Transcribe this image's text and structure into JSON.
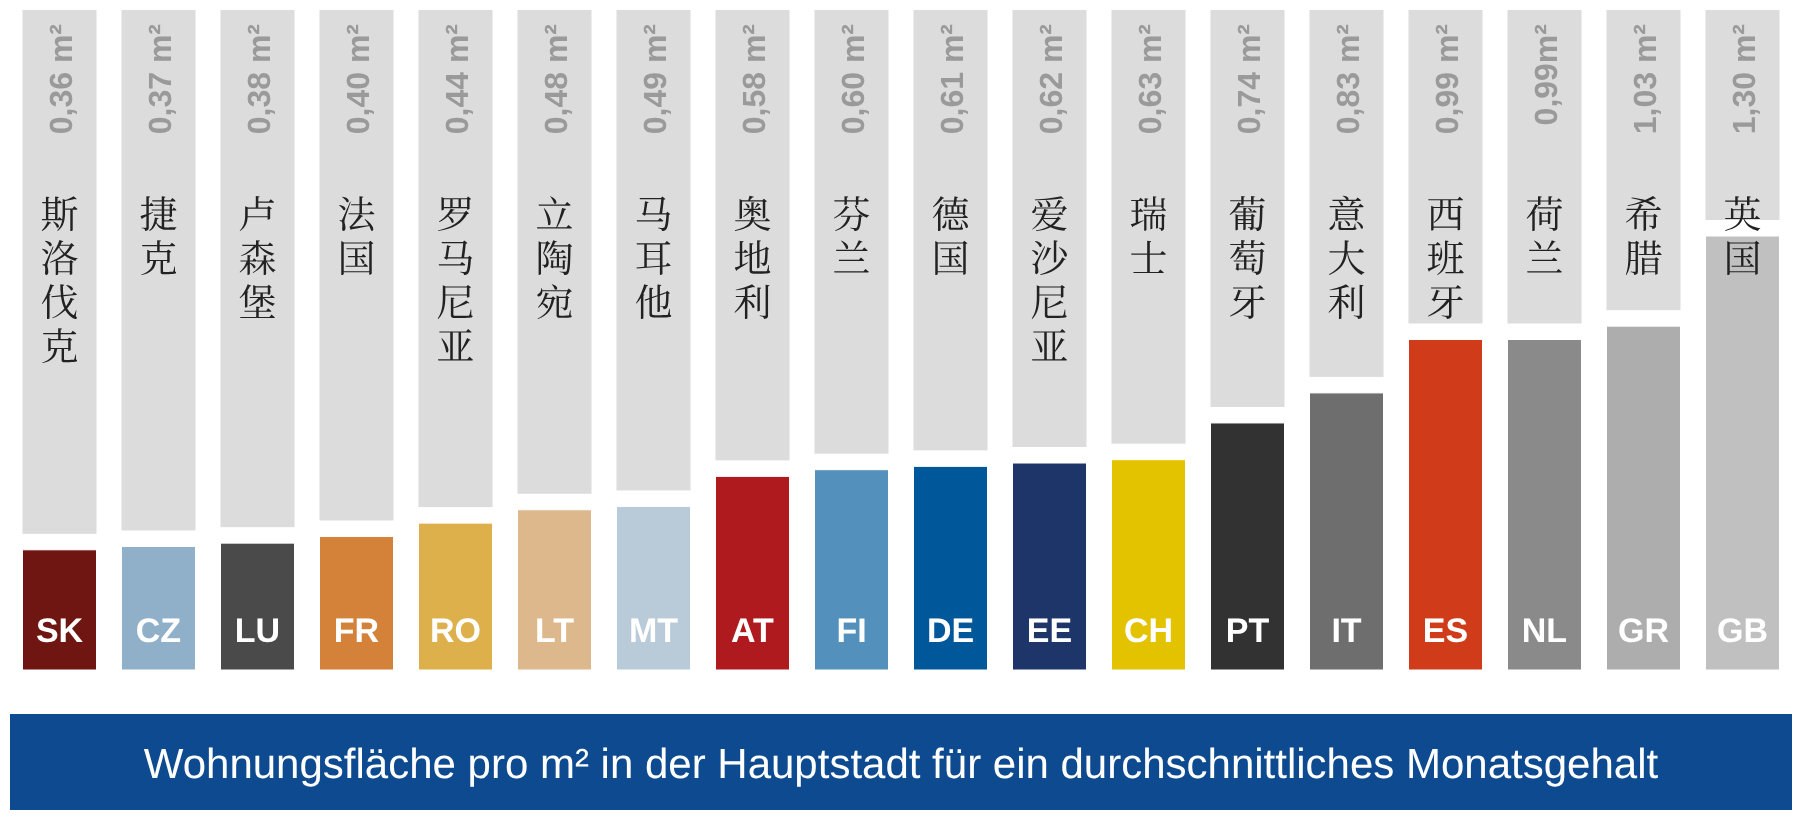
{
  "chart_data": {
    "type": "bar",
    "title": "Wohnungsfläche pro m² in der Hauptstadt für ein durchschnittliches Monatsgehalt",
    "categories": [
      "SK",
      "CZ",
      "LU",
      "FR",
      "RO",
      "LT",
      "MT",
      "AT",
      "FI",
      "DE",
      "EE",
      "CH",
      "PT",
      "IT",
      "ES",
      "NL",
      "GR",
      "GB"
    ],
    "values": [
      0.36,
      0.37,
      0.38,
      0.4,
      0.44,
      0.48,
      0.49,
      0.58,
      0.6,
      0.61,
      0.62,
      0.63,
      0.74,
      0.83,
      0.99,
      0.99,
      1.03,
      1.3
    ],
    "value_labels": [
      "0,36 m²",
      "0,37 m²",
      "0,38 m²",
      "0,40 m²",
      "0,44 m²",
      "0,48 m²",
      "0,49 m²",
      "0,58 m²",
      "0,60 m²",
      "0,61 m²",
      "0,62 m²",
      "0,63 m²",
      "0,74 m²",
      "0,83 m²",
      "0,99 m²",
      "0,99m²",
      "1,03 m²",
      "1,30 m²"
    ],
    "colors": [
      "#6f1512",
      "#8fb0c8",
      "#4a4a4a",
      "#d4823a",
      "#ddb04c",
      "#dcb88c",
      "#b9cad9",
      "#ae1a1e",
      "#5490bc",
      "#00579a",
      "#1e356a",
      "#e3c300",
      "#323232",
      "#6e6e6e",
      "#d03c1a",
      "#8a8a8a",
      "#adadad",
      "#c0c0c0"
    ],
    "annotations": [
      "斯洛伐克",
      "捷克",
      "卢森堡",
      "法国",
      "罗马尼亚",
      "立陶宛",
      "马耳他",
      "奥地利",
      "芬兰",
      "德国",
      "爱沙尼亚",
      "瑞士",
      "葡萄牙",
      "意大利",
      "西班牙",
      "荷兰",
      "希腊",
      "英国"
    ]
  }
}
